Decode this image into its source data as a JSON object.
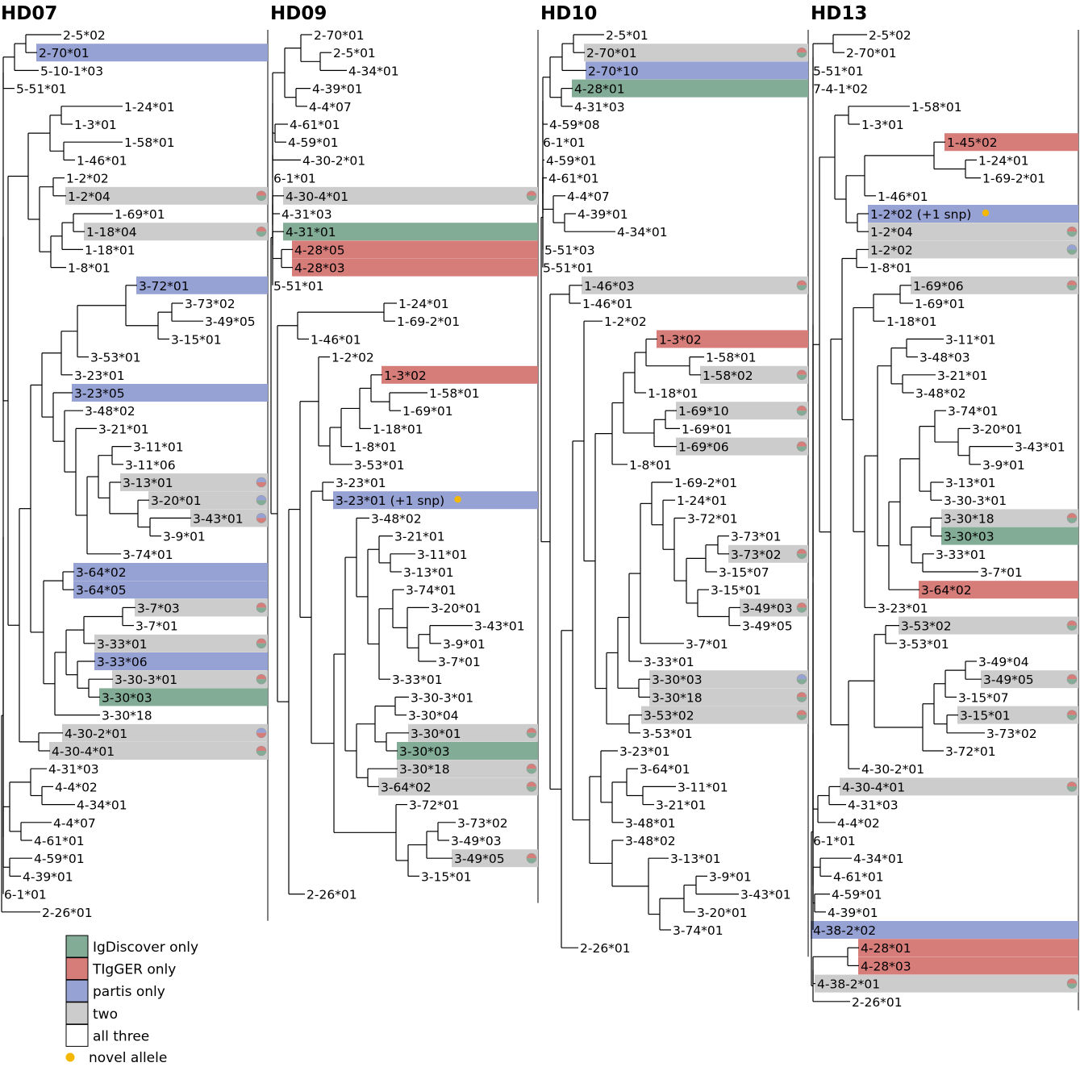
{
  "colors": {
    "igdiscover": "#82ac96",
    "tigger": "#d67d7a",
    "partis": "#97a2d4",
    "two": "#cccccc",
    "all": "#ffffff",
    "novel": "#f5b800"
  },
  "legend": [
    {
      "key": "igdiscover",
      "label": "IgDiscover only"
    },
    {
      "key": "tigger",
      "label": "TIgGER only"
    },
    {
      "key": "partis",
      "label": "partis only"
    },
    {
      "key": "two",
      "label": "two"
    },
    {
      "key": "all",
      "label": "all three"
    },
    {
      "key": "novel",
      "label": "novel allele"
    }
  ],
  "panels": [
    {
      "title": "HD07",
      "leaves": [
        {
          "label": "2-5*02"
        },
        {
          "label": "2-70*01",
          "hl": "partis"
        },
        {
          "label": "5-10-1*03"
        },
        {
          "label": "5-51*01"
        },
        {
          "label": "1-24*01"
        },
        {
          "label": "1-3*01"
        },
        {
          "label": "1-58*01"
        },
        {
          "label": "1-46*01"
        },
        {
          "label": "1-2*02"
        },
        {
          "label": "1-2*04",
          "hl": "two",
          "pie": [
            "igdiscover",
            "tigger"
          ]
        },
        {
          "label": "1-69*01"
        },
        {
          "label": "1-18*04",
          "hl": "two",
          "pie": [
            "igdiscover",
            "tigger"
          ]
        },
        {
          "label": "1-18*01"
        },
        {
          "label": "1-8*01"
        },
        {
          "label": "3-72*01",
          "hl": "partis"
        },
        {
          "label": "3-73*02"
        },
        {
          "label": "3-49*05"
        },
        {
          "label": "3-15*01"
        },
        {
          "label": "3-53*01"
        },
        {
          "label": "3-23*01"
        },
        {
          "label": "3-23*05",
          "hl": "partis"
        },
        {
          "label": "3-48*02"
        },
        {
          "label": "3-21*01"
        },
        {
          "label": "3-11*01"
        },
        {
          "label": "3-11*06"
        },
        {
          "label": "3-13*01",
          "hl": "two",
          "pie": [
            "tigger",
            "partis"
          ]
        },
        {
          "label": "3-20*01",
          "hl": "two",
          "pie": [
            "igdiscover",
            "partis"
          ]
        },
        {
          "label": "3-43*01",
          "hl": "two",
          "pie": [
            "tigger",
            "partis"
          ]
        },
        {
          "label": "3-9*01"
        },
        {
          "label": "3-74*01"
        },
        {
          "label": "3-64*02",
          "hl": "partis"
        },
        {
          "label": "3-64*05",
          "hl": "partis"
        },
        {
          "label": "3-7*03",
          "hl": "two",
          "pie": [
            "igdiscover",
            "tigger"
          ]
        },
        {
          "label": "3-7*01"
        },
        {
          "label": "3-33*01",
          "hl": "two",
          "pie": [
            "igdiscover",
            "tigger"
          ]
        },
        {
          "label": "3-33*06",
          "hl": "partis"
        },
        {
          "label": "3-30-3*01",
          "hl": "two",
          "pie": [
            "igdiscover",
            "tigger"
          ]
        },
        {
          "label": "3-30*03",
          "hl": "igdiscover"
        },
        {
          "label": "3-30*18"
        },
        {
          "label": "4-30-2*01",
          "hl": "two",
          "pie": [
            "tigger",
            "partis"
          ]
        },
        {
          "label": "4-30-4*01",
          "hl": "two",
          "pie": [
            "igdiscover",
            "tigger"
          ]
        },
        {
          "label": "4-31*03"
        },
        {
          "label": "4-4*02"
        },
        {
          "label": "4-34*01"
        },
        {
          "label": "4-4*07"
        },
        {
          "label": "4-61*01"
        },
        {
          "label": "4-59*01"
        },
        {
          "label": "4-39*01"
        },
        {
          "label": "6-1*01"
        },
        {
          "label": "2-26*01"
        }
      ]
    },
    {
      "title": "HD09",
      "leaves": [
        {
          "label": "2-70*01"
        },
        {
          "label": "2-5*01"
        },
        {
          "label": "4-34*01"
        },
        {
          "label": "4-39*01"
        },
        {
          "label": "4-4*07"
        },
        {
          "label": "4-61*01"
        },
        {
          "label": "4-59*01"
        },
        {
          "label": "4-30-2*01"
        },
        {
          "label": "6-1*01"
        },
        {
          "label": "4-30-4*01",
          "hl": "two",
          "pie": [
            "igdiscover",
            "tigger"
          ]
        },
        {
          "label": "4-31*03"
        },
        {
          "label": "4-31*01",
          "hl": "igdiscover"
        },
        {
          "label": "4-28*05",
          "hl": "tigger"
        },
        {
          "label": "4-28*03",
          "hl": "tigger"
        },
        {
          "label": "5-51*01"
        },
        {
          "label": "1-24*01"
        },
        {
          "label": "1-69-2*01"
        },
        {
          "label": "1-46*01"
        },
        {
          "label": "1-2*02"
        },
        {
          "label": "1-3*02",
          "hl": "tigger"
        },
        {
          "label": "1-58*01"
        },
        {
          "label": "1-69*01"
        },
        {
          "label": "1-18*01"
        },
        {
          "label": "1-8*01"
        },
        {
          "label": "3-53*01"
        },
        {
          "label": "3-23*01"
        },
        {
          "label": "3-23*01 (+1 snp)",
          "hl": "partis",
          "novel": true
        },
        {
          "label": "3-48*02"
        },
        {
          "label": "3-21*01"
        },
        {
          "label": "3-11*01"
        },
        {
          "label": "3-13*01"
        },
        {
          "label": "3-74*01"
        },
        {
          "label": "3-20*01"
        },
        {
          "label": "3-43*01"
        },
        {
          "label": "3-9*01"
        },
        {
          "label": "3-7*01"
        },
        {
          "label": "3-33*01"
        },
        {
          "label": "3-30-3*01"
        },
        {
          "label": "3-30*04"
        },
        {
          "label": "3-30*01",
          "hl": "two",
          "pie": [
            "igdiscover",
            "tigger"
          ]
        },
        {
          "label": "3-30*03",
          "hl": "igdiscover"
        },
        {
          "label": "3-30*18",
          "hl": "two",
          "pie": [
            "igdiscover",
            "tigger"
          ]
        },
        {
          "label": "3-64*02",
          "hl": "two",
          "pie": [
            "igdiscover",
            "tigger"
          ]
        },
        {
          "label": "3-72*01"
        },
        {
          "label": "3-73*02"
        },
        {
          "label": "3-49*03"
        },
        {
          "label": "3-49*05",
          "hl": "two",
          "pie": [
            "igdiscover",
            "tigger"
          ]
        },
        {
          "label": "3-15*01"
        },
        {
          "label": "2-26*01"
        }
      ]
    },
    {
      "title": "HD10",
      "leaves": [
        {
          "label": "2-5*01"
        },
        {
          "label": "2-70*01",
          "hl": "two",
          "pie": [
            "igdiscover",
            "tigger"
          ]
        },
        {
          "label": "2-70*10",
          "hl": "partis"
        },
        {
          "label": "4-28*01",
          "hl": "igdiscover"
        },
        {
          "label": "4-31*03"
        },
        {
          "label": "4-59*08"
        },
        {
          "label": "6-1*01"
        },
        {
          "label": "4-59*01"
        },
        {
          "label": "4-61*01"
        },
        {
          "label": "4-4*07"
        },
        {
          "label": "4-39*01"
        },
        {
          "label": "4-34*01"
        },
        {
          "label": "5-51*03"
        },
        {
          "label": "5-51*01"
        },
        {
          "label": "1-46*03",
          "hl": "two",
          "pie": [
            "igdiscover",
            "tigger"
          ]
        },
        {
          "label": "1-46*01"
        },
        {
          "label": "1-2*02"
        },
        {
          "label": "1-3*02",
          "hl": "tigger"
        },
        {
          "label": "1-58*01"
        },
        {
          "label": "1-58*02",
          "hl": "two",
          "pie": [
            "igdiscover",
            "tigger"
          ]
        },
        {
          "label": "1-18*01"
        },
        {
          "label": "1-69*10",
          "hl": "two",
          "pie": [
            "igdiscover",
            "tigger"
          ]
        },
        {
          "label": "1-69*01"
        },
        {
          "label": "1-69*06",
          "hl": "two",
          "pie": [
            "igdiscover",
            "tigger"
          ]
        },
        {
          "label": "1-8*01"
        },
        {
          "label": "1-69-2*01"
        },
        {
          "label": "1-24*01"
        },
        {
          "label": "3-72*01"
        },
        {
          "label": "3-73*01"
        },
        {
          "label": "3-73*02",
          "hl": "two",
          "pie": [
            "igdiscover",
            "tigger"
          ]
        },
        {
          "label": "3-15*07"
        },
        {
          "label": "3-15*01"
        },
        {
          "label": "3-49*03",
          "hl": "two",
          "pie": [
            "igdiscover",
            "tigger"
          ]
        },
        {
          "label": "3-49*05"
        },
        {
          "label": "3-7*01"
        },
        {
          "label": "3-33*01"
        },
        {
          "label": "3-30*03",
          "hl": "two",
          "pie": [
            "igdiscover",
            "partis"
          ]
        },
        {
          "label": "3-30*18",
          "hl": "two",
          "pie": [
            "igdiscover",
            "tigger"
          ]
        },
        {
          "label": "3-53*02",
          "hl": "two",
          "pie": [
            "igdiscover",
            "tigger"
          ]
        },
        {
          "label": "3-53*01"
        },
        {
          "label": "3-23*01"
        },
        {
          "label": "3-64*01"
        },
        {
          "label": "3-11*01"
        },
        {
          "label": "3-21*01"
        },
        {
          "label": "3-48*01"
        },
        {
          "label": "3-48*02"
        },
        {
          "label": "3-13*01"
        },
        {
          "label": "3-9*01"
        },
        {
          "label": "3-43*01"
        },
        {
          "label": "3-20*01"
        },
        {
          "label": "3-74*01"
        },
        {
          "label": "2-26*01"
        }
      ]
    },
    {
      "title": "HD13",
      "leaves": [
        {
          "label": "2-5*02"
        },
        {
          "label": "2-70*01"
        },
        {
          "label": "5-51*01"
        },
        {
          "label": "7-4-1*02"
        },
        {
          "label": "1-58*01"
        },
        {
          "label": "1-3*01"
        },
        {
          "label": "1-45*02",
          "hl": "tigger"
        },
        {
          "label": "1-24*01"
        },
        {
          "label": "1-69-2*01"
        },
        {
          "label": "1-46*01"
        },
        {
          "label": "1-2*02 (+1 snp)",
          "hl": "partis",
          "novel": true
        },
        {
          "label": "1-2*04",
          "hl": "two",
          "pie": [
            "igdiscover",
            "tigger"
          ]
        },
        {
          "label": "1-2*02",
          "hl": "two",
          "pie": [
            "igdiscover",
            "partis"
          ]
        },
        {
          "label": "1-8*01"
        },
        {
          "label": "1-69*06",
          "hl": "two",
          "pie": [
            "igdiscover",
            "tigger"
          ]
        },
        {
          "label": "1-69*01"
        },
        {
          "label": "1-18*01"
        },
        {
          "label": "3-11*01"
        },
        {
          "label": "3-48*03"
        },
        {
          "label": "3-21*01"
        },
        {
          "label": "3-48*02"
        },
        {
          "label": "3-74*01"
        },
        {
          "label": "3-20*01"
        },
        {
          "label": "3-43*01"
        },
        {
          "label": "3-9*01"
        },
        {
          "label": "3-13*01"
        },
        {
          "label": "3-30-3*01"
        },
        {
          "label": "3-30*18",
          "hl": "two",
          "pie": [
            "igdiscover",
            "tigger"
          ]
        },
        {
          "label": "3-30*03",
          "hl": "igdiscover"
        },
        {
          "label": "3-33*01"
        },
        {
          "label": "3-7*01"
        },
        {
          "label": "3-64*02",
          "hl": "tigger"
        },
        {
          "label": "3-23*01"
        },
        {
          "label": "3-53*02",
          "hl": "two",
          "pie": [
            "igdiscover",
            "tigger"
          ]
        },
        {
          "label": "3-53*01"
        },
        {
          "label": "3-49*04"
        },
        {
          "label": "3-49*05",
          "hl": "two",
          "pie": [
            "igdiscover",
            "tigger"
          ]
        },
        {
          "label": "3-15*07"
        },
        {
          "label": "3-15*01",
          "hl": "two",
          "pie": [
            "igdiscover",
            "tigger"
          ]
        },
        {
          "label": "3-73*02"
        },
        {
          "label": "3-72*01"
        },
        {
          "label": "4-30-2*01"
        },
        {
          "label": "4-30-4*01",
          "hl": "two",
          "pie": [
            "igdiscover",
            "tigger"
          ]
        },
        {
          "label": "4-31*03"
        },
        {
          "label": "4-4*02"
        },
        {
          "label": "6-1*01"
        },
        {
          "label": "4-34*01"
        },
        {
          "label": "4-61*01"
        },
        {
          "label": "4-59*01"
        },
        {
          "label": "4-39*01"
        },
        {
          "label": "4-38-2*02",
          "hl": "partis"
        },
        {
          "label": "4-28*01",
          "hl": "tigger"
        },
        {
          "label": "4-28*03",
          "hl": "tigger"
        },
        {
          "label": "4-38-2*01",
          "hl": "two",
          "pie": [
            "igdiscover",
            "tigger"
          ]
        },
        {
          "label": "2-26*01"
        }
      ]
    }
  ]
}
